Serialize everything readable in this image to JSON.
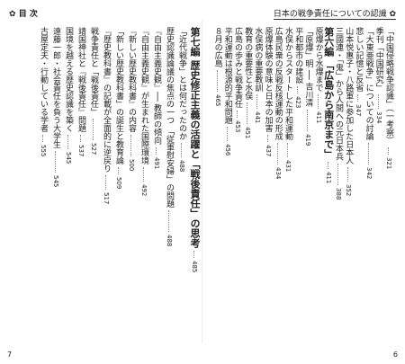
{
  "header": {
    "left_title": "目 次",
    "right_title": "日本の戦争責任についての認識"
  },
  "right_page": {
    "number": "6",
    "entries": [
      {
        "title": "「中国侵略戦争認識」（一考察）",
        "page": "321"
      },
      {
        "title": "季刊「中国研究」",
        "page": "334"
      },
      {
        "title": "「大東亜戦争」についての討論",
        "page": "342"
      },
      {
        "title": "悲しい記憶と反省",
        "page": "347"
      },
      {
        "title": "山本悦惠子・八路軍に参加した日本人",
        "page": "352"
      },
      {
        "title": "三國連・「鬼」から人間への元日本兵",
        "page": "388"
      },
      {
        "heading": "第六編 「広島から南京まで」",
        "page": "411"
      },
      {
        "title": "原爆から水爆まで",
        "page": "411"
      },
      {
        "title": "「原爆」明 ── 吉川清",
        "page": "419"
      },
      {
        "title": "平和都市の建設",
        "page": "423"
      },
      {
        "title": "水俣からスタートした平和運動",
        "page": "431"
      },
      {
        "title": "広島民衆の反戦反核運動の形成",
        "page": "434"
      },
      {
        "title": "原爆体験の意味と日本の加害",
        "page": "437"
      },
      {
        "title": "水俣病の重要教訓",
        "page": "441"
      },
      {
        "title": "教育の重要性と水俣",
        "page": "451"
      },
      {
        "title": "広島の歩みと戦争責任",
        "page": "453"
      },
      {
        "title": "平和運動は根源的平和問題",
        "page": "456"
      },
      {
        "title": "８月の広島",
        "page": "465"
      }
    ]
  },
  "left_page": {
    "number": "7",
    "entries": [
      {
        "heading": "第七編 歴史修正主義の活躍と「戦後責任」の思考",
        "page": "485"
      },
      {
        "title": "「近代戦争」とは何だったのか",
        "page": "488"
      },
      {
        "title": "歴史認識論議の焦点の一つ 「従軍慰安婦」の問題",
        "page": "488"
      },
      {
        "title": "『自由主義史観』── 教師の傾向",
        "page": "491"
      },
      {
        "title": "『自由主義史観』が生まれた国際環境",
        "page": "492"
      },
      {
        "title": "『新しい歴史教科書』の内容",
        "page": "500"
      },
      {
        "title": "「新しい歴史教科書」の誕生と教育論",
        "page": "509"
      },
      {
        "title": "『歴史教科書』の記載が全面的に逆戻り",
        "page": "517"
      },
      {
        "title": "戦争責任と「戦後責任」",
        "page": "527"
      },
      {
        "title": "靖国神社と『戦後責任』問題",
        "page": "537"
      },
      {
        "title": "国境を越える歴史認識を築く",
        "page": "545"
      },
      {
        "title": "遠藤一郎・社会責任を負う大学生",
        "page": "545"
      },
      {
        "title": "古屋定夫・行動している学者",
        "page": "555"
      }
    ]
  }
}
